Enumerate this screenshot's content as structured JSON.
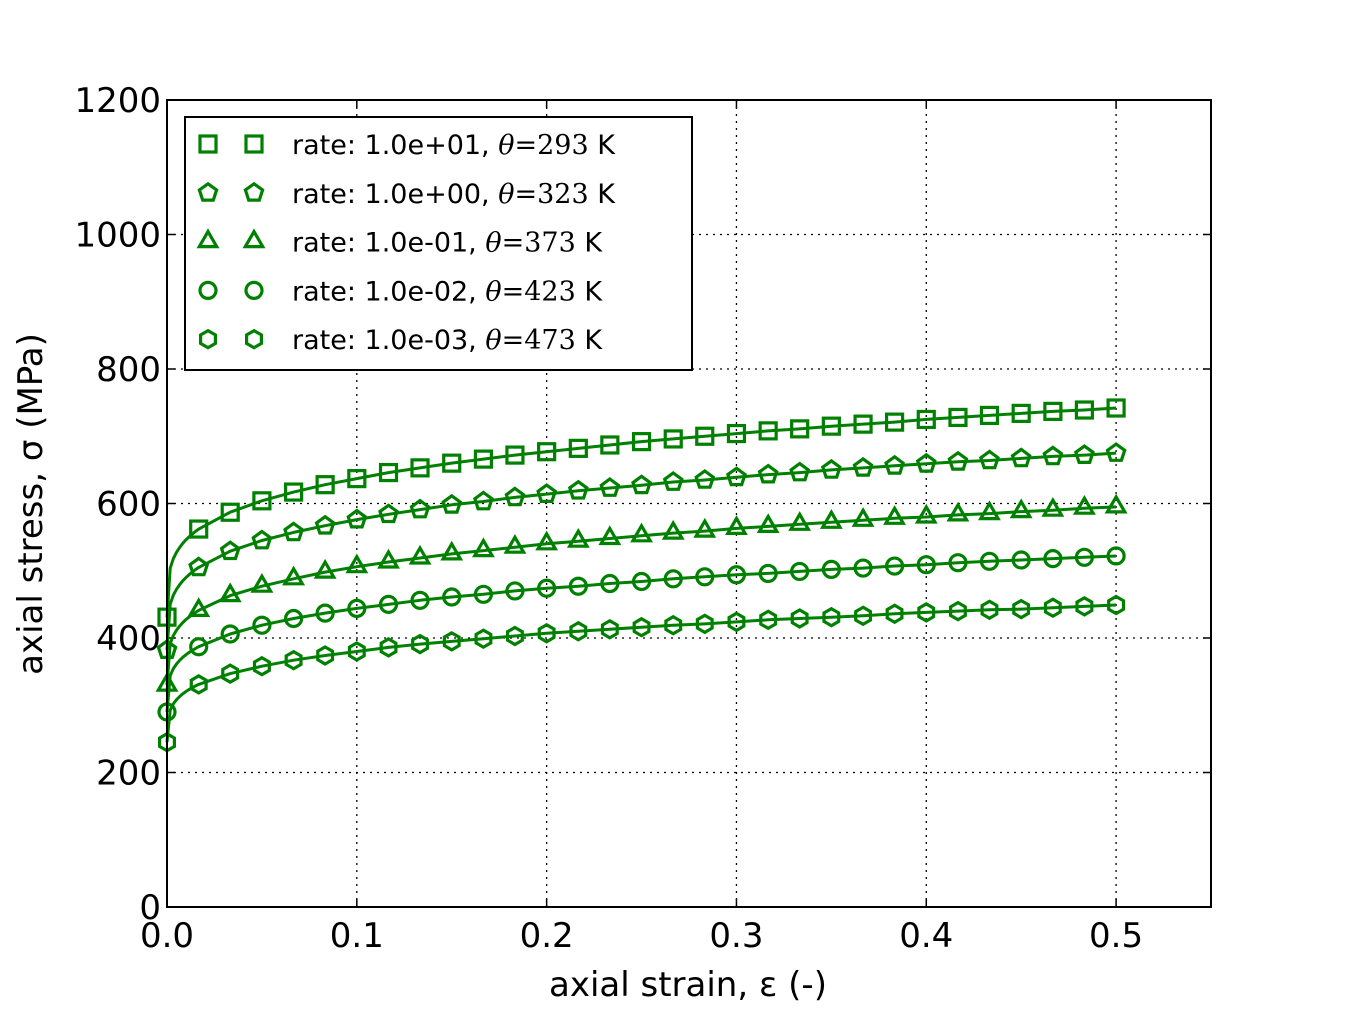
{
  "chart_data": {
    "type": "line",
    "xlabel": "axial strain, ε (-)",
    "ylabel": "axial stress, σ (MPa)",
    "xlim": [
      0,
      0.55
    ],
    "ylim": [
      0,
      1200
    ],
    "xticks": [
      "0.0",
      "0.1",
      "0.2",
      "0.3",
      "0.4",
      "0.5"
    ],
    "yticks": [
      "0",
      "200",
      "400",
      "600",
      "800",
      "1000",
      "1200"
    ],
    "grid": true,
    "legend_position": "top-left",
    "color": "#008000",
    "x": [
      0,
      0.0167,
      0.0333,
      0.05,
      0.0667,
      0.0833,
      0.1,
      0.1167,
      0.1333,
      0.15,
      0.1667,
      0.1833,
      0.2,
      0.2167,
      0.2333,
      0.25,
      0.2667,
      0.2833,
      0.3,
      0.3167,
      0.3333,
      0.35,
      0.3667,
      0.3833,
      0.4,
      0.4167,
      0.4333,
      0.45,
      0.4667,
      0.4833,
      0.5
    ],
    "series": [
      {
        "name": "rate: 1.0e-03, θ=473 K",
        "label_main": "rate: 1.0e-03, ",
        "theta": "θ",
        "eq": "=473",
        "unit": " K",
        "marker": "hexagon",
        "values": [
          245,
          331,
          347,
          358,
          367,
          374,
          380,
          386,
          391,
          395,
          399,
          403,
          407,
          410,
          413,
          416,
          419,
          421,
          424,
          427,
          429,
          431,
          433,
          436,
          438,
          440,
          442,
          443,
          445,
          447,
          449
        ]
      },
      {
        "name": "rate: 1.0e-02, θ=423 K",
        "label_main": "rate: 1.0e-02, ",
        "theta": "θ",
        "eq": "=423",
        "unit": " K",
        "marker": "circle",
        "values": [
          290,
          387,
          406,
          419,
          429,
          437,
          444,
          450,
          456,
          461,
          465,
          470,
          474,
          477,
          481,
          484,
          488,
          491,
          494,
          496,
          499,
          502,
          504,
          507,
          509,
          512,
          514,
          516,
          518,
          520,
          522
        ]
      },
      {
        "name": "rate: 1.0e-01, θ=373 K",
        "label_main": "rate: 1.0e-01, ",
        "theta": "θ",
        "eq": "=373",
        "unit": " K",
        "marker": "triangle",
        "values": [
          330,
          441,
          463,
          477,
          488,
          498,
          506,
          513,
          519,
          525,
          530,
          535,
          540,
          544,
          548,
          552,
          556,
          559,
          563,
          566,
          569,
          572,
          575,
          578,
          580,
          583,
          585,
          588,
          590,
          593,
          595
        ]
      },
      {
        "name": "rate: 1.0e+00, θ=323 K",
        "label_main": "rate: 1.0e+00, ",
        "theta": "θ",
        "eq": "=323",
        "unit": " K",
        "marker": "pentagon",
        "values": [
          382,
          505,
          529,
          545,
          557,
          567,
          576,
          584,
          591,
          598,
          603,
          609,
          614,
          619,
          623,
          627,
          632,
          635,
          639,
          643,
          646,
          650,
          653,
          656,
          659,
          662,
          664,
          667,
          670,
          672,
          675
        ]
      },
      {
        "name": "rate: 1.0e+01, θ=293 K",
        "label_main": "rate: 1.0e+01, ",
        "theta": "θ",
        "eq": "=293",
        "unit": " K",
        "marker": "square",
        "values": [
          431,
          562,
          587,
          604,
          617,
          628,
          637,
          646,
          653,
          660,
          666,
          672,
          677,
          682,
          687,
          692,
          696,
          700,
          704,
          708,
          711,
          715,
          718,
          721,
          725,
          728,
          731,
          734,
          737,
          739,
          742
        ]
      }
    ]
  }
}
